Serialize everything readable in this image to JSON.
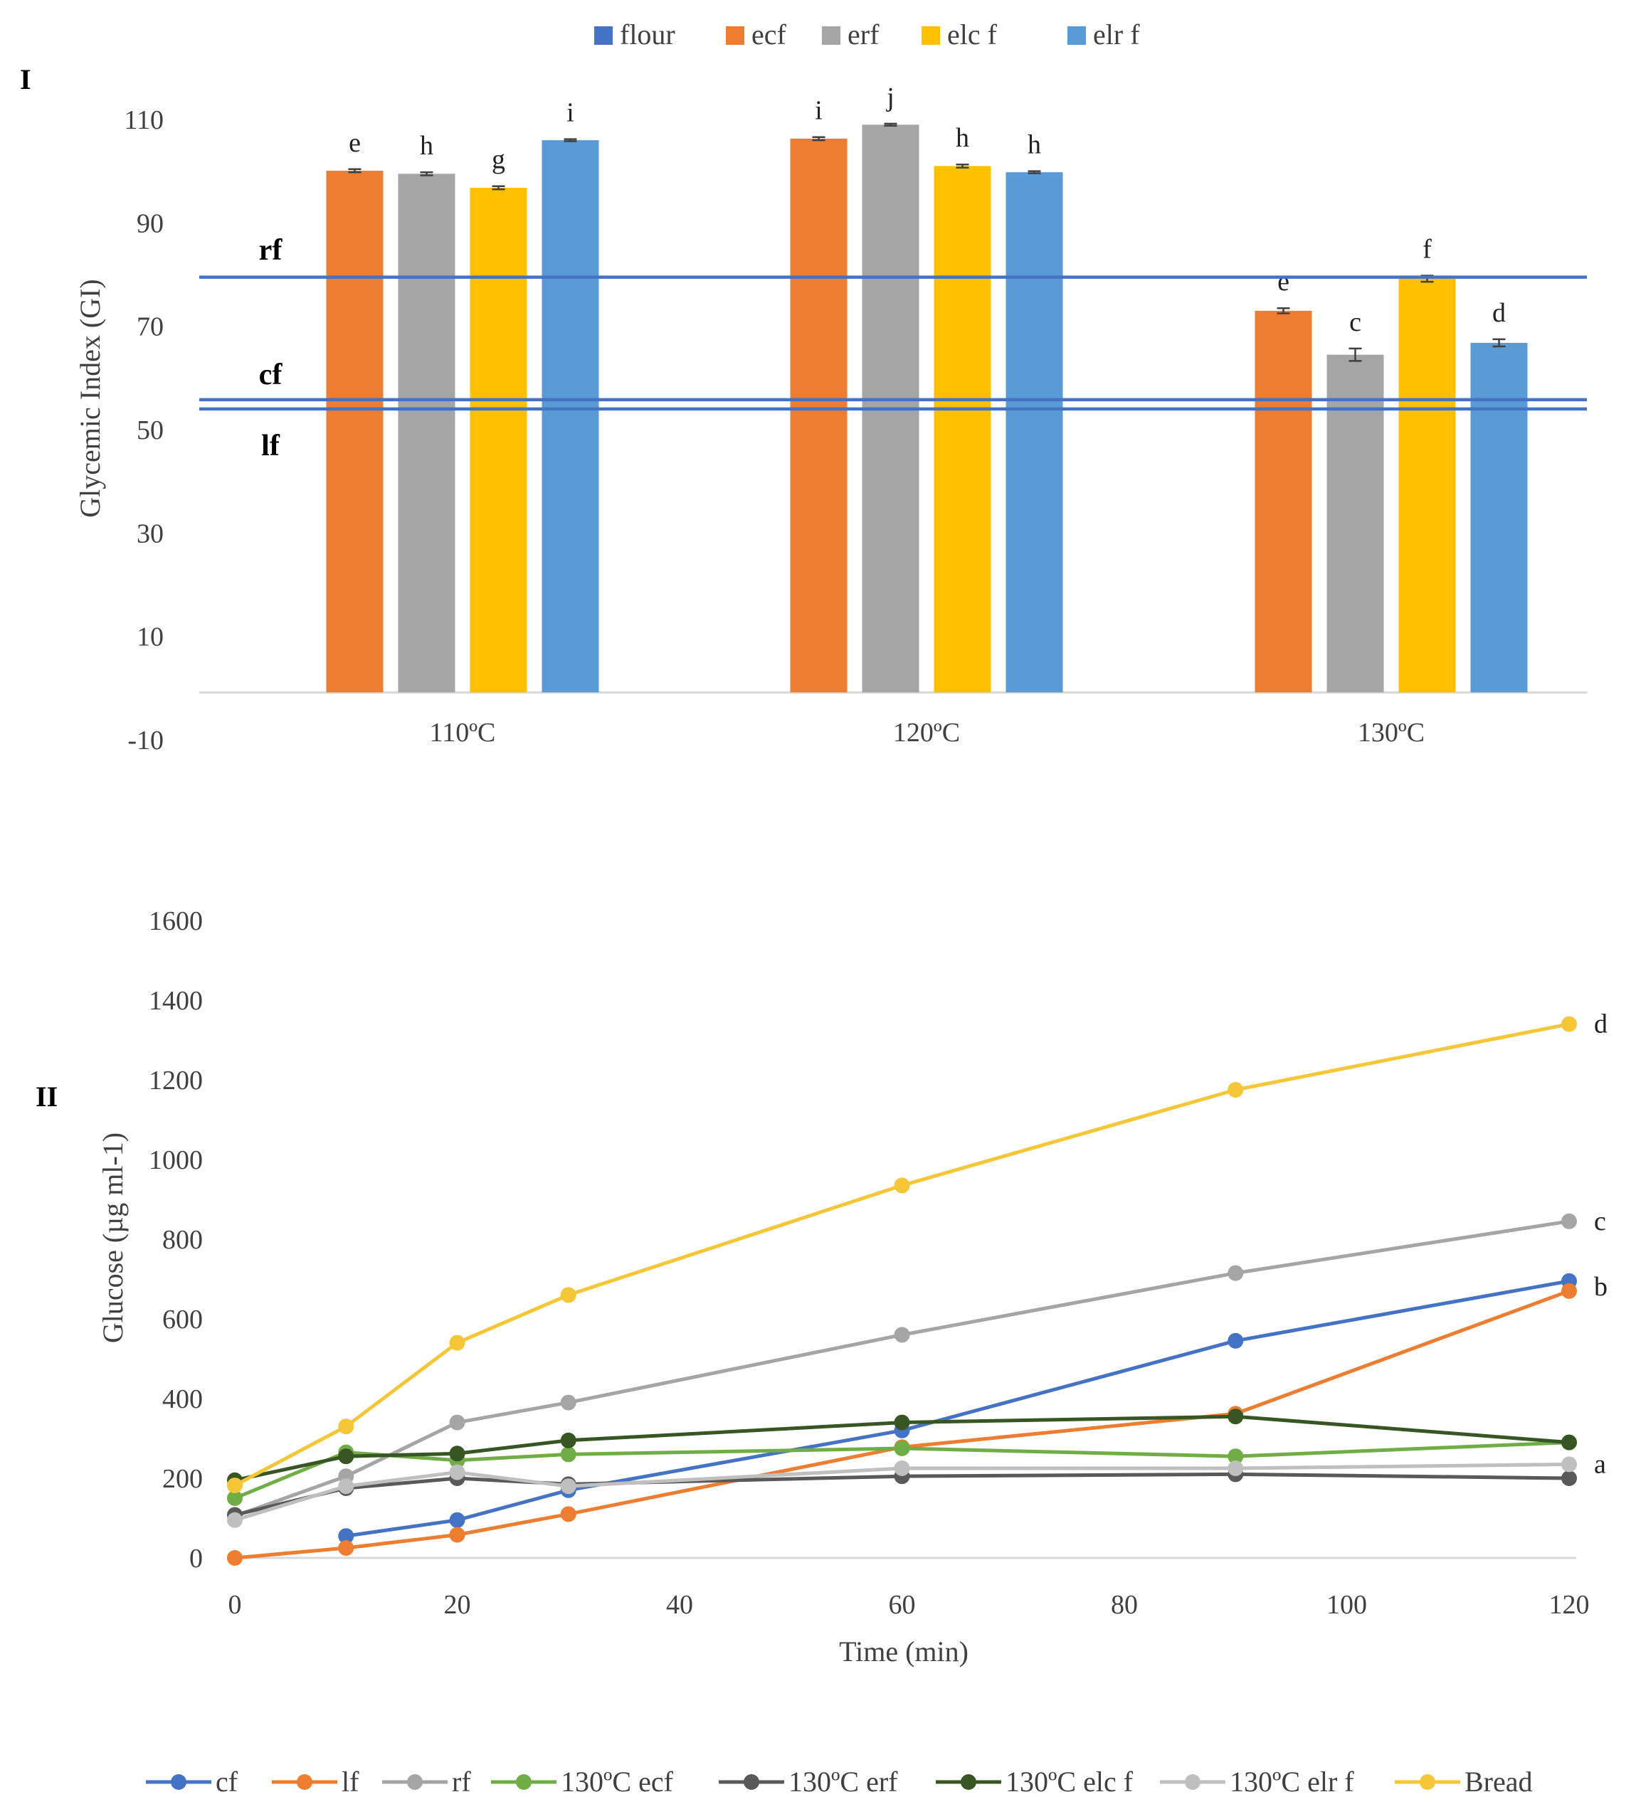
{
  "chart_data": [
    {
      "type": "bar",
      "panel_label": "I",
      "ylabel": "Glycemic Index (GI)",
      "xlabel": "",
      "ylim": [
        -10,
        115
      ],
      "yticks": [
        -10,
        10,
        30,
        50,
        70,
        90,
        110
      ],
      "categories": [
        "110ºC",
        "120ºC",
        "130ºC"
      ],
      "legend_position": "top",
      "legend": [
        {
          "name": "flour",
          "color": "#4472C4"
        },
        {
          "name": "ecf",
          "color": "#ED7D31"
        },
        {
          "name": "erf",
          "color": "#A5A5A5"
        },
        {
          "name": "elc f",
          "color": "#FFC000"
        },
        {
          "name": "elr f",
          "color": "#5B9BD5"
        }
      ],
      "series": [
        {
          "name": "ecf",
          "color": "#ED7D31",
          "values": [
            100.1,
            106.3,
            73.0
          ],
          "errors": [
            0.3,
            0.3,
            0.5
          ],
          "labels": [
            "e",
            "i",
            "e"
          ]
        },
        {
          "name": "erf",
          "color": "#A5A5A5",
          "values": [
            99.5,
            109.0,
            64.5
          ],
          "errors": [
            0.3,
            0.2,
            1.2
          ],
          "labels": [
            "h",
            "j",
            "c"
          ]
        },
        {
          "name": "elc f",
          "color": "#FFC000",
          "values": [
            96.8,
            101.0,
            79.2
          ],
          "errors": [
            0.3,
            0.3,
            0.6
          ],
          "labels": [
            "g",
            "h",
            "f"
          ]
        },
        {
          "name": "elr f",
          "color": "#5B9BD5",
          "values": [
            106.0,
            99.8,
            66.8
          ],
          "errors": [
            0.2,
            0.2,
            0.7
          ],
          "labels": [
            "i",
            "h",
            "d"
          ]
        }
      ],
      "reference_lines": [
        {
          "label": "rf",
          "value": 79.5,
          "color": "#4472C4"
        },
        {
          "label": "cf",
          "value": 55.8,
          "color": "#4472C4"
        },
        {
          "label": "lf",
          "value": 54.0,
          "color": "#4472C4"
        }
      ]
    },
    {
      "type": "line",
      "panel_label": "II",
      "xlabel": "Time (min)",
      "ylabel": "Glucose (µg ml-1)",
      "xlim": [
        0,
        120
      ],
      "ylim": [
        0,
        1600
      ],
      "xticks": [
        0,
        20,
        40,
        60,
        80,
        100,
        120
      ],
      "yticks": [
        0,
        200,
        400,
        600,
        800,
        1000,
        1200,
        1400,
        1600
      ],
      "x": [
        0,
        10,
        20,
        30,
        60,
        90,
        120
      ],
      "legend_position": "bottom",
      "series": [
        {
          "name": "cf",
          "color": "#4472C4",
          "values": [
            null,
            55,
            95,
            170,
            320,
            545,
            695
          ]
        },
        {
          "name": "lf",
          "color": "#ED7D31",
          "values": [
            0,
            25,
            58,
            110,
            278,
            362,
            670
          ]
        },
        {
          "name": "rf",
          "color": "#A5A5A5",
          "values": [
            105,
            205,
            340,
            390,
            560,
            715,
            845
          ]
        },
        {
          "name": "130ºC ecf",
          "color": "#70AD47",
          "values": [
            150,
            265,
            245,
            260,
            275,
            255,
            290
          ]
        },
        {
          "name": "130ºC erf",
          "color": "#595959",
          "values": [
            108,
            175,
            200,
            185,
            205,
            210,
            200
          ]
        },
        {
          "name": "130ºC  elc f",
          "color": "#375623",
          "values": [
            195,
            255,
            262,
            295,
            340,
            355,
            290
          ]
        },
        {
          "name": "130ºC  elr f",
          "color": "#BFBFBF",
          "values": [
            95,
            180,
            215,
            180,
            225,
            225,
            235
          ]
        },
        {
          "name": "Bread",
          "color": "#F4C638",
          "values": [
            182,
            330,
            540,
            660,
            935,
            1175,
            1340
          ]
        }
      ],
      "annotations": [
        {
          "text": "d",
          "x": 120,
          "y": 1340
        },
        {
          "text": "c",
          "x": 120,
          "y": 845
        },
        {
          "text": "b",
          "x": 120,
          "y": 680
        },
        {
          "text": "a",
          "x": 120,
          "y": 235
        }
      ]
    }
  ]
}
